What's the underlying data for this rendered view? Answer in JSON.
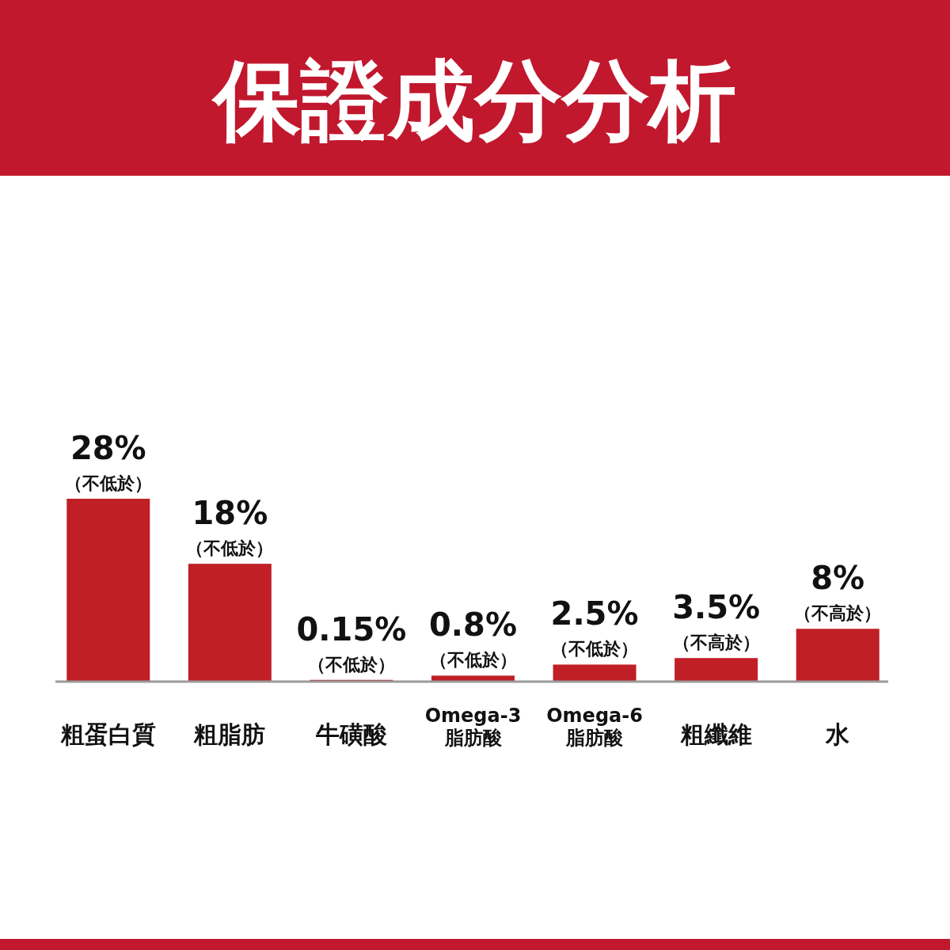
{
  "chart_data": {
    "type": "bar",
    "title": "保證成分分析",
    "categories": [
      "粗蛋白質",
      "粗脂肪",
      "牛磺酸",
      "Omega-3\n脂肪酸",
      "Omega-6\n脂肪酸",
      "粗纖維",
      "水"
    ],
    "values": [
      28,
      18,
      0.15,
      0.8,
      2.5,
      3.5,
      8
    ],
    "value_labels": [
      "28%",
      "18%",
      "0.15%",
      "0.8%",
      "2.5%",
      "3.5%",
      "8%"
    ],
    "color": "#c01f26",
    "annotations": [
      {
        "text": "（不低於）",
        "x": "粗蛋白質",
        "y": 28
      },
      {
        "text": "（不低於）",
        "x": "粗脂肪",
        "y": 18
      },
      {
        "text": "（不低於）",
        "x": "牛磺酸",
        "y": 0.15
      },
      {
        "text": "（不低於）",
        "x": "Omega-3\n脂肪酸",
        "y": 0.8
      },
      {
        "text": "（不低於）",
        "x": "Omega-6\n脂肪酸",
        "y": 2.5
      },
      {
        "text": "（不高於）",
        "x": "粗纖維",
        "y": 3.5
      },
      {
        "text": "（不高於）",
        "x": "水",
        "y": 8
      }
    ]
  }
}
